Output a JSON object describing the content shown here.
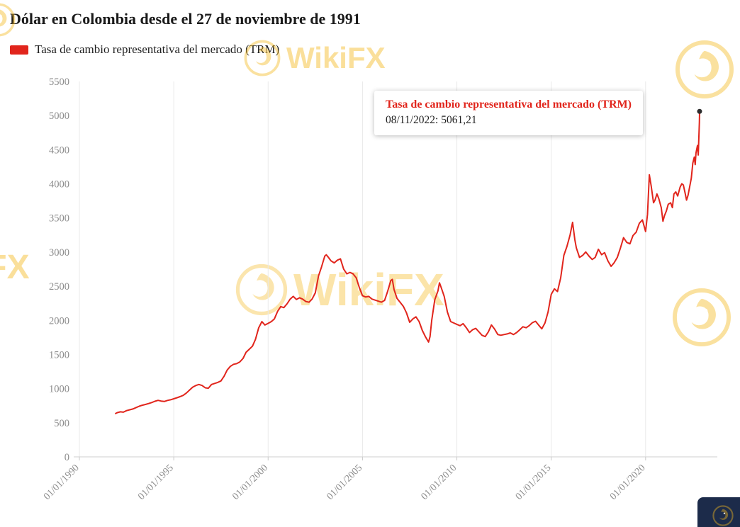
{
  "title": "Dólar en Colombia desde el 27 de noviembre de 1991",
  "legend": {
    "label": "Tasa de cambio representativa del mercado (TRM)",
    "color": "#e1251c"
  },
  "watermark": {
    "text": "WikiFX"
  },
  "tooltip": {
    "title": "Tasa de cambio representativa del mercado (TRM)",
    "value_line": "08/11/2022: 5061,21"
  },
  "chart_data": {
    "type": "line",
    "title": "Dólar en Colombia desde el 27 de noviembre de 1991",
    "xlabel": "",
    "ylabel": "",
    "grid": "vertical",
    "legend_position": "top-left",
    "xlim": [
      1990,
      2023.8
    ],
    "ylim": [
      0,
      5500
    ],
    "y_ticks": [
      0,
      500,
      1000,
      1500,
      2000,
      2500,
      3000,
      3500,
      4000,
      4500,
      5000,
      5500
    ],
    "x_ticks": [
      {
        "value": 1990,
        "label": "01/01/1990"
      },
      {
        "value": 1995,
        "label": "01/01/1995"
      },
      {
        "value": 2000,
        "label": "01/01/2000"
      },
      {
        "value": 2005,
        "label": "01/01/2005"
      },
      {
        "value": 2010,
        "label": "01/01/2010"
      },
      {
        "value": 2015,
        "label": "01/01/2015"
      },
      {
        "value": 2020,
        "label": "01/01/2020"
      }
    ],
    "highlight_point": {
      "date": "08/11/2022",
      "x": 2022.86,
      "y": 5061.21,
      "label": "5061,21"
    },
    "series": [
      {
        "name": "Tasa de cambio representativa del mercado (TRM)",
        "color": "#e1251c",
        "points": [
          [
            1991.92,
            635
          ],
          [
            1992.0,
            648
          ],
          [
            1992.17,
            660
          ],
          [
            1992.33,
            655
          ],
          [
            1992.5,
            678
          ],
          [
            1992.67,
            690
          ],
          [
            1992.83,
            702
          ],
          [
            1993.0,
            722
          ],
          [
            1993.17,
            742
          ],
          [
            1993.33,
            756
          ],
          [
            1993.5,
            768
          ],
          [
            1993.67,
            781
          ],
          [
            1993.83,
            796
          ],
          [
            1994.0,
            815
          ],
          [
            1994.17,
            828
          ],
          [
            1994.33,
            818
          ],
          [
            1994.5,
            812
          ],
          [
            1994.67,
            827
          ],
          [
            1994.83,
            836
          ],
          [
            1995.0,
            851
          ],
          [
            1995.17,
            866
          ],
          [
            1995.33,
            882
          ],
          [
            1995.5,
            901
          ],
          [
            1995.67,
            936
          ],
          [
            1995.83,
            977
          ],
          [
            1996.0,
            1021
          ],
          [
            1996.17,
            1046
          ],
          [
            1996.33,
            1061
          ],
          [
            1996.5,
            1046
          ],
          [
            1996.67,
            1012
          ],
          [
            1996.83,
            1006
          ],
          [
            1997.0,
            1061
          ],
          [
            1997.17,
            1076
          ],
          [
            1997.33,
            1091
          ],
          [
            1997.5,
            1112
          ],
          [
            1997.67,
            1182
          ],
          [
            1997.83,
            1272
          ],
          [
            1998.0,
            1326
          ],
          [
            1998.17,
            1356
          ],
          [
            1998.33,
            1366
          ],
          [
            1998.5,
            1391
          ],
          [
            1998.67,
            1442
          ],
          [
            1998.83,
            1532
          ],
          [
            1999.0,
            1576
          ],
          [
            1999.17,
            1622
          ],
          [
            1999.33,
            1722
          ],
          [
            1999.5,
            1892
          ],
          [
            1999.67,
            1982
          ],
          [
            1999.83,
            1932
          ],
          [
            2000.0,
            1956
          ],
          [
            2000.17,
            1982
          ],
          [
            2000.33,
            2022
          ],
          [
            2000.5,
            2132
          ],
          [
            2000.67,
            2202
          ],
          [
            2000.83,
            2186
          ],
          [
            2001.0,
            2241
          ],
          [
            2001.17,
            2312
          ],
          [
            2001.33,
            2352
          ],
          [
            2001.5,
            2306
          ],
          [
            2001.67,
            2331
          ],
          [
            2001.83,
            2311
          ],
          [
            2002.0,
            2276
          ],
          [
            2002.17,
            2266
          ],
          [
            2002.33,
            2312
          ],
          [
            2002.5,
            2402
          ],
          [
            2002.67,
            2652
          ],
          [
            2002.83,
            2782
          ],
          [
            2003.0,
            2942
          ],
          [
            2003.08,
            2961
          ],
          [
            2003.17,
            2932
          ],
          [
            2003.33,
            2872
          ],
          [
            2003.5,
            2842
          ],
          [
            2003.67,
            2882
          ],
          [
            2003.83,
            2902
          ],
          [
            2004.0,
            2752
          ],
          [
            2004.17,
            2682
          ],
          [
            2004.33,
            2702
          ],
          [
            2004.5,
            2682
          ],
          [
            2004.67,
            2622
          ],
          [
            2004.83,
            2482
          ],
          [
            2005.0,
            2362
          ],
          [
            2005.17,
            2342
          ],
          [
            2005.33,
            2352
          ],
          [
            2005.5,
            2312
          ],
          [
            2005.67,
            2296
          ],
          [
            2005.83,
            2282
          ],
          [
            2006.0,
            2266
          ],
          [
            2006.17,
            2292
          ],
          [
            2006.33,
            2422
          ],
          [
            2006.5,
            2582
          ],
          [
            2006.58,
            2601
          ],
          [
            2006.67,
            2452
          ],
          [
            2006.83,
            2322
          ],
          [
            2007.0,
            2262
          ],
          [
            2007.17,
            2202
          ],
          [
            2007.33,
            2112
          ],
          [
            2007.5,
            1972
          ],
          [
            2007.67,
            2022
          ],
          [
            2007.83,
            2052
          ],
          [
            2008.0,
            1982
          ],
          [
            2008.17,
            1852
          ],
          [
            2008.33,
            1762
          ],
          [
            2008.5,
            1682
          ],
          [
            2008.58,
            1762
          ],
          [
            2008.67,
            2002
          ],
          [
            2008.83,
            2302
          ],
          [
            2009.0,
            2432
          ],
          [
            2009.08,
            2551
          ],
          [
            2009.17,
            2482
          ],
          [
            2009.33,
            2352
          ],
          [
            2009.5,
            2122
          ],
          [
            2009.67,
            1982
          ],
          [
            2009.83,
            1962
          ],
          [
            2010.0,
            1942
          ],
          [
            2010.17,
            1922
          ],
          [
            2010.33,
            1952
          ],
          [
            2010.5,
            1892
          ],
          [
            2010.67,
            1822
          ],
          [
            2010.83,
            1862
          ],
          [
            2011.0,
            1882
          ],
          [
            2011.17,
            1832
          ],
          [
            2011.33,
            1782
          ],
          [
            2011.5,
            1762
          ],
          [
            2011.67,
            1832
          ],
          [
            2011.83,
            1932
          ],
          [
            2012.0,
            1872
          ],
          [
            2012.17,
            1792
          ],
          [
            2012.33,
            1782
          ],
          [
            2012.5,
            1792
          ],
          [
            2012.67,
            1802
          ],
          [
            2012.83,
            1816
          ],
          [
            2013.0,
            1792
          ],
          [
            2013.17,
            1822
          ],
          [
            2013.33,
            1862
          ],
          [
            2013.5,
            1906
          ],
          [
            2013.67,
            1892
          ],
          [
            2013.83,
            1922
          ],
          [
            2014.0,
            1966
          ],
          [
            2014.17,
            1986
          ],
          [
            2014.33,
            1932
          ],
          [
            2014.5,
            1876
          ],
          [
            2014.67,
            1962
          ],
          [
            2014.83,
            2122
          ],
          [
            2015.0,
            2382
          ],
          [
            2015.17,
            2462
          ],
          [
            2015.33,
            2422
          ],
          [
            2015.5,
            2622
          ],
          [
            2015.67,
            2952
          ],
          [
            2015.83,
            3082
          ],
          [
            2016.0,
            3252
          ],
          [
            2016.13,
            3436
          ],
          [
            2016.25,
            3182
          ],
          [
            2016.33,
            3062
          ],
          [
            2016.5,
            2922
          ],
          [
            2016.67,
            2952
          ],
          [
            2016.83,
            3002
          ],
          [
            2017.0,
            2942
          ],
          [
            2017.17,
            2892
          ],
          [
            2017.33,
            2922
          ],
          [
            2017.5,
            3042
          ],
          [
            2017.67,
            2962
          ],
          [
            2017.83,
            2992
          ],
          [
            2018.0,
            2872
          ],
          [
            2018.17,
            2792
          ],
          [
            2018.33,
            2842
          ],
          [
            2018.5,
            2922
          ],
          [
            2018.67,
            3062
          ],
          [
            2018.83,
            3212
          ],
          [
            2019.0,
            3142
          ],
          [
            2019.17,
            3122
          ],
          [
            2019.33,
            3242
          ],
          [
            2019.5,
            3292
          ],
          [
            2019.67,
            3422
          ],
          [
            2019.83,
            3472
          ],
          [
            2020.0,
            3302
          ],
          [
            2020.1,
            3552
          ],
          [
            2020.2,
            4132
          ],
          [
            2020.3,
            3962
          ],
          [
            2020.42,
            3722
          ],
          [
            2020.5,
            3762
          ],
          [
            2020.6,
            3852
          ],
          [
            2020.7,
            3782
          ],
          [
            2020.83,
            3652
          ],
          [
            2020.92,
            3452
          ],
          [
            2021.0,
            3532
          ],
          [
            2021.1,
            3602
          ],
          [
            2021.2,
            3702
          ],
          [
            2021.33,
            3722
          ],
          [
            2021.42,
            3652
          ],
          [
            2021.5,
            3852
          ],
          [
            2021.6,
            3882
          ],
          [
            2021.7,
            3822
          ],
          [
            2021.83,
            3952
          ],
          [
            2021.92,
            4002
          ],
          [
            2022.0,
            3982
          ],
          [
            2022.08,
            3882
          ],
          [
            2022.17,
            3762
          ],
          [
            2022.25,
            3832
          ],
          [
            2022.33,
            3952
          ],
          [
            2022.42,
            4082
          ],
          [
            2022.5,
            4302
          ],
          [
            2022.58,
            4392
          ],
          [
            2022.63,
            4282
          ],
          [
            2022.67,
            4452
          ],
          [
            2022.75,
            4562
          ],
          [
            2022.79,
            4422
          ],
          [
            2022.83,
            4752
          ],
          [
            2022.85,
            4902
          ],
          [
            2022.86,
            5061.21
          ]
        ]
      }
    ]
  }
}
